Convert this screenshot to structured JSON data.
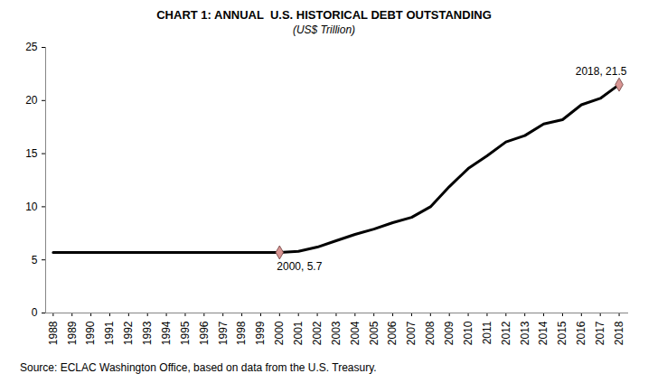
{
  "chart_data": {
    "type": "line",
    "title": "CHART 1: ANNUAL  U.S. HISTORICAL DEBT OUTSTANDING",
    "subtitle": "(US$ Trillion)",
    "caption": "Source: ECLAC Washington Office, based on data from the U.S. Treasury.",
    "x": [
      1988,
      1989,
      1990,
      1991,
      1992,
      1993,
      1994,
      1995,
      1996,
      1997,
      1998,
      1999,
      2000,
      2001,
      2002,
      2003,
      2004,
      2005,
      2006,
      2007,
      2008,
      2009,
      2010,
      2011,
      2012,
      2013,
      2014,
      2015,
      2016,
      2017,
      2018
    ],
    "series": [
      {
        "color": "#000000",
        "values": [
          5.7,
          5.7,
          5.7,
          5.7,
          5.7,
          5.7,
          5.7,
          5.7,
          5.7,
          5.7,
          5.7,
          5.7,
          5.7,
          5.8,
          6.2,
          6.8,
          7.4,
          7.9,
          8.5,
          9.0,
          10.0,
          11.9,
          13.6,
          14.8,
          16.1,
          16.7,
          17.8,
          18.2,
          19.6,
          20.2,
          21.5
        ]
      }
    ],
    "xlim": [
      1987.6,
      2018.5
    ],
    "xticks": [
      1988,
      1989,
      1990,
      1991,
      1992,
      1993,
      1994,
      1995,
      1996,
      1997,
      1998,
      1999,
      2000,
      2001,
      2002,
      2003,
      2004,
      2005,
      2006,
      2007,
      2008,
      2009,
      2010,
      2011,
      2012,
      2013,
      2014,
      2015,
      2016,
      2017,
      2018
    ],
    "ylim": [
      0,
      25
    ],
    "yticks": [
      0,
      5,
      10,
      15,
      20,
      25
    ],
    "grid": false,
    "annotations": [
      {
        "text": "2000, 5.7",
        "x": 2000,
        "y": 5.7,
        "marker": "diamond",
        "color": "#d99694"
      },
      {
        "text": "2018, 21.5",
        "x": 2018,
        "y": 21.5,
        "marker": "diamond",
        "color": "#d99694"
      }
    ]
  }
}
